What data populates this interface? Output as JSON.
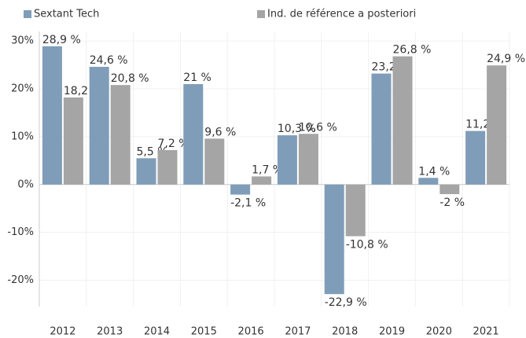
{
  "chart_data": {
    "type": "bar",
    "categories": [
      "2012",
      "2013",
      "2014",
      "2015",
      "2016",
      "2017",
      "2018",
      "2019",
      "2020",
      "2021"
    ],
    "series": [
      {
        "name": "Sextant Tech",
        "color": "#7f9db9",
        "values": [
          28.9,
          24.6,
          5.5,
          21,
          -2.1,
          10.3,
          -22.9,
          23.2,
          1.4,
          11.2
        ],
        "value_labels": [
          "28,9 %",
          "24,6 %",
          "5,5 %",
          "21 %",
          "-2,1 %",
          "10,3 %",
          "-22,9 %",
          "23,2 %",
          "1,4 %",
          "11,2 %"
        ]
      },
      {
        "name": "Ind. de référence a posteriori",
        "color": "#a5a5a5",
        "values": [
          18.2,
          20.8,
          7.2,
          9.6,
          1.7,
          10.6,
          -10.8,
          26.8,
          -2,
          24.9
        ],
        "value_labels": [
          "18,2 %",
          "20,8 %",
          "7,2 %",
          "9,6 %",
          "1,7 %",
          "10,6 %",
          "-10,8 %",
          "26,8 %",
          "-2 %",
          "24,9 %"
        ]
      }
    ],
    "ylim": [
      -25.5,
      32
    ],
    "yticks": [
      {
        "value": -20,
        "label": "-20%"
      },
      {
        "value": -10,
        "label": "-10%"
      },
      {
        "value": 0,
        "label": "0%"
      },
      {
        "value": 10,
        "label": "10%"
      },
      {
        "value": 20,
        "label": "20%"
      },
      {
        "value": 30,
        "label": "30%"
      }
    ],
    "grid": true,
    "legend": "top-left"
  }
}
